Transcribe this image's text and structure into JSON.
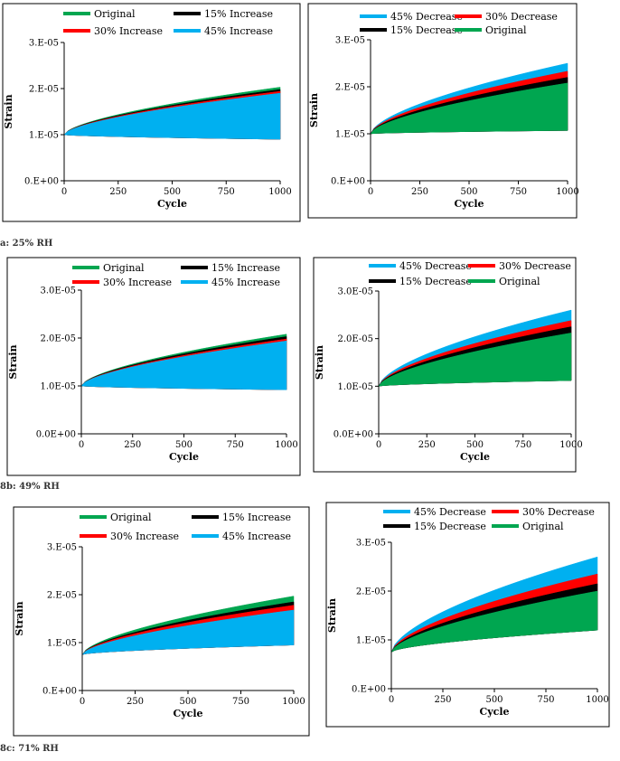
{
  "colors": {
    "original": "#00A650",
    "inc15": "#000000",
    "inc30": "#FF0000",
    "inc45": "#00B0F0",
    "dec15": "#000000",
    "dec30": "#FF0000",
    "dec45": "#00B0F0"
  },
  "captions": [
    "a: 25% RH",
    "8b: 49% RH",
    "8c: 71% RH"
  ],
  "chart_data": [
    {
      "id": "a-left",
      "type": "area",
      "xlabel": "Cycle",
      "ylabel": "Strain",
      "xlim": [
        0,
        1000
      ],
      "ylim": [
        0,
        3e-05
      ],
      "xticks": [
        "0",
        "250",
        "500",
        "750",
        "1000"
      ],
      "yticks": [
        "0.E+00",
        "1.E-05",
        "2.E-05",
        "3.E-05"
      ],
      "legend": [
        "Original",
        "15% Increase",
        "30% Increase",
        "45% Increase"
      ],
      "legend_colors": [
        "original",
        "inc15",
        "inc30",
        "inc45"
      ],
      "series": [
        {
          "name": "Original",
          "color": "original",
          "upper": [
            1e-05,
            2.03e-05
          ],
          "lower": [
            1e-05,
            9e-06
          ]
        },
        {
          "name": "15% Increase",
          "color": "inc15",
          "upper": [
            1e-05,
            1.98e-05
          ],
          "lower": [
            1e-05,
            9e-06
          ]
        },
        {
          "name": "30% Increase",
          "color": "inc30",
          "upper": [
            1e-05,
            1.94e-05
          ],
          "lower": [
            1e-05,
            9e-06
          ]
        },
        {
          "name": "45% Increase",
          "color": "inc45",
          "upper": [
            1e-05,
            1.9e-05
          ],
          "lower": [
            1e-05,
            9e-06
          ]
        }
      ]
    },
    {
      "id": "a-right",
      "type": "area",
      "xlabel": "Cycle",
      "ylabel": "Strain",
      "xlim": [
        0,
        1000
      ],
      "ylim": [
        0,
        3e-05
      ],
      "xticks": [
        "0",
        "250",
        "500",
        "750",
        "1000"
      ],
      "yticks": [
        "0.E+00",
        "1.E-05",
        "2.E-05",
        "3.E-05"
      ],
      "legend": [
        "45% Decrease",
        "30% Decrease",
        "15% Decrease",
        "Original"
      ],
      "legend_colors": [
        "dec45",
        "dec30",
        "dec15",
        "original"
      ],
      "series": [
        {
          "name": "45% Decrease",
          "color": "dec45",
          "upper": [
            1e-05,
            2.5e-05
          ],
          "lower": [
            1e-05,
            1.07e-05
          ]
        },
        {
          "name": "30% Decrease",
          "color": "dec30",
          "upper": [
            1e-05,
            2.33e-05
          ],
          "lower": [
            1e-05,
            1.07e-05
          ]
        },
        {
          "name": "15% Decrease",
          "color": "dec15",
          "upper": [
            1e-05,
            2.2e-05
          ],
          "lower": [
            1e-05,
            1.07e-05
          ]
        },
        {
          "name": "Original",
          "color": "original",
          "upper": [
            1e-05,
            2.08e-05
          ],
          "lower": [
            1e-05,
            1.07e-05
          ]
        }
      ]
    },
    {
      "id": "b-left",
      "type": "area",
      "xlabel": "Cycle",
      "ylabel": "Strain",
      "xlim": [
        0,
        1000
      ],
      "ylim": [
        0,
        3e-05
      ],
      "xticks": [
        "0",
        "250",
        "500",
        "750",
        "1000"
      ],
      "yticks": [
        "0.0E+00",
        "1.0E-05",
        "2.0E-05",
        "3.0E-05"
      ],
      "legend": [
        "Original",
        "15% Increase",
        "30% Increase",
        "45% Increase"
      ],
      "legend_colors": [
        "original",
        "inc15",
        "inc30",
        "inc45"
      ],
      "series": [
        {
          "name": "Original",
          "color": "original",
          "upper": [
            1e-05,
            2.08e-05
          ],
          "lower": [
            1e-05,
            9.2e-06
          ]
        },
        {
          "name": "15% Increase",
          "color": "inc15",
          "upper": [
            1e-05,
            2.03e-05
          ],
          "lower": [
            1e-05,
            9.2e-06
          ]
        },
        {
          "name": "30% Increase",
          "color": "inc30",
          "upper": [
            1e-05,
            1.98e-05
          ],
          "lower": [
            1e-05,
            9.2e-06
          ]
        },
        {
          "name": "45% Increase",
          "color": "inc45",
          "upper": [
            1e-05,
            1.94e-05
          ],
          "lower": [
            1e-05,
            9.2e-06
          ]
        }
      ]
    },
    {
      "id": "b-right",
      "type": "area",
      "xlabel": "Cycle",
      "ylabel": "Strain",
      "xlim": [
        0,
        1000
      ],
      "ylim": [
        0,
        3e-05
      ],
      "xticks": [
        "0",
        "250",
        "500",
        "750",
        "1000"
      ],
      "yticks": [
        "0.0E+00",
        "1.0E-05",
        "2.0E-05",
        "3.0E-05"
      ],
      "legend": [
        "45% Decrease",
        "30% Decrease",
        "15% Decrease",
        "Original"
      ],
      "legend_colors": [
        "dec45",
        "dec30",
        "dec15",
        "original"
      ],
      "series": [
        {
          "name": "45% Decrease",
          "color": "dec45",
          "upper": [
            1e-05,
            2.6e-05
          ],
          "lower": [
            1e-05,
            1.12e-05
          ]
        },
        {
          "name": "30% Decrease",
          "color": "dec30",
          "upper": [
            1e-05,
            2.38e-05
          ],
          "lower": [
            1e-05,
            1.12e-05
          ]
        },
        {
          "name": "15% Decrease",
          "color": "dec15",
          "upper": [
            1e-05,
            2.25e-05
          ],
          "lower": [
            1e-05,
            1.12e-05
          ]
        },
        {
          "name": "Original",
          "color": "original",
          "upper": [
            1e-05,
            2.12e-05
          ],
          "lower": [
            1e-05,
            1.12e-05
          ]
        }
      ]
    },
    {
      "id": "c-left",
      "type": "area",
      "xlabel": "Cycle",
      "ylabel": "Strain",
      "xlim": [
        0,
        1000
      ],
      "ylim": [
        0,
        3e-05
      ],
      "xticks": [
        "0",
        "250",
        "500",
        "750",
        "1000"
      ],
      "yticks": [
        "0.E+00",
        "1.E-05",
        "2.E-05",
        "3.E-05"
      ],
      "legend": [
        "Original",
        "15% Increase",
        "30% Increase",
        "45% Increase"
      ],
      "legend_colors": [
        "original",
        "inc15",
        "inc30",
        "inc45"
      ],
      "series": [
        {
          "name": "Original",
          "color": "original",
          "upper": [
            7.5e-06,
            1.97e-05
          ],
          "lower": [
            7.5e-06,
            9.5e-06
          ]
        },
        {
          "name": "15% Increase",
          "color": "inc15",
          "upper": [
            7.5e-06,
            1.85e-05
          ],
          "lower": [
            7.5e-06,
            9.5e-06
          ]
        },
        {
          "name": "30% Increase",
          "color": "inc30",
          "upper": [
            7.5e-06,
            1.78e-05
          ],
          "lower": [
            7.5e-06,
            9.5e-06
          ]
        },
        {
          "name": "45% Increase",
          "color": "inc45",
          "upper": [
            7.5e-06,
            1.68e-05
          ],
          "lower": [
            7.5e-06,
            9.5e-06
          ]
        }
      ]
    },
    {
      "id": "c-right",
      "type": "area",
      "xlabel": "Cycle",
      "ylabel": "Strain",
      "xlim": [
        0,
        1000
      ],
      "ylim": [
        0,
        3e-05
      ],
      "xticks": [
        "0",
        "250",
        "500",
        "750",
        "1000"
      ],
      "yticks": [
        "0.E+00",
        "1.E-05",
        "2.E-05",
        "3.E-05"
      ],
      "legend": [
        "45% Decrease",
        "30% Decrease",
        "15% Decrease",
        "Original"
      ],
      "legend_colors": [
        "dec45",
        "dec30",
        "dec15",
        "original"
      ],
      "series": [
        {
          "name": "45% Decrease",
          "color": "dec45",
          "upper": [
            7.5e-06,
            2.7e-05
          ],
          "lower": [
            7.5e-06,
            1.2e-05
          ]
        },
        {
          "name": "30% Decrease",
          "color": "dec30",
          "upper": [
            7.5e-06,
            2.35e-05
          ],
          "lower": [
            7.5e-06,
            1.2e-05
          ]
        },
        {
          "name": "15% Decrease",
          "color": "dec15",
          "upper": [
            7.5e-06,
            2.15e-05
          ],
          "lower": [
            7.5e-06,
            1.2e-05
          ]
        },
        {
          "name": "Original",
          "color": "original",
          "upper": [
            7.5e-06,
            2e-05
          ],
          "lower": [
            7.5e-06,
            1.2e-05
          ]
        }
      ]
    }
  ]
}
